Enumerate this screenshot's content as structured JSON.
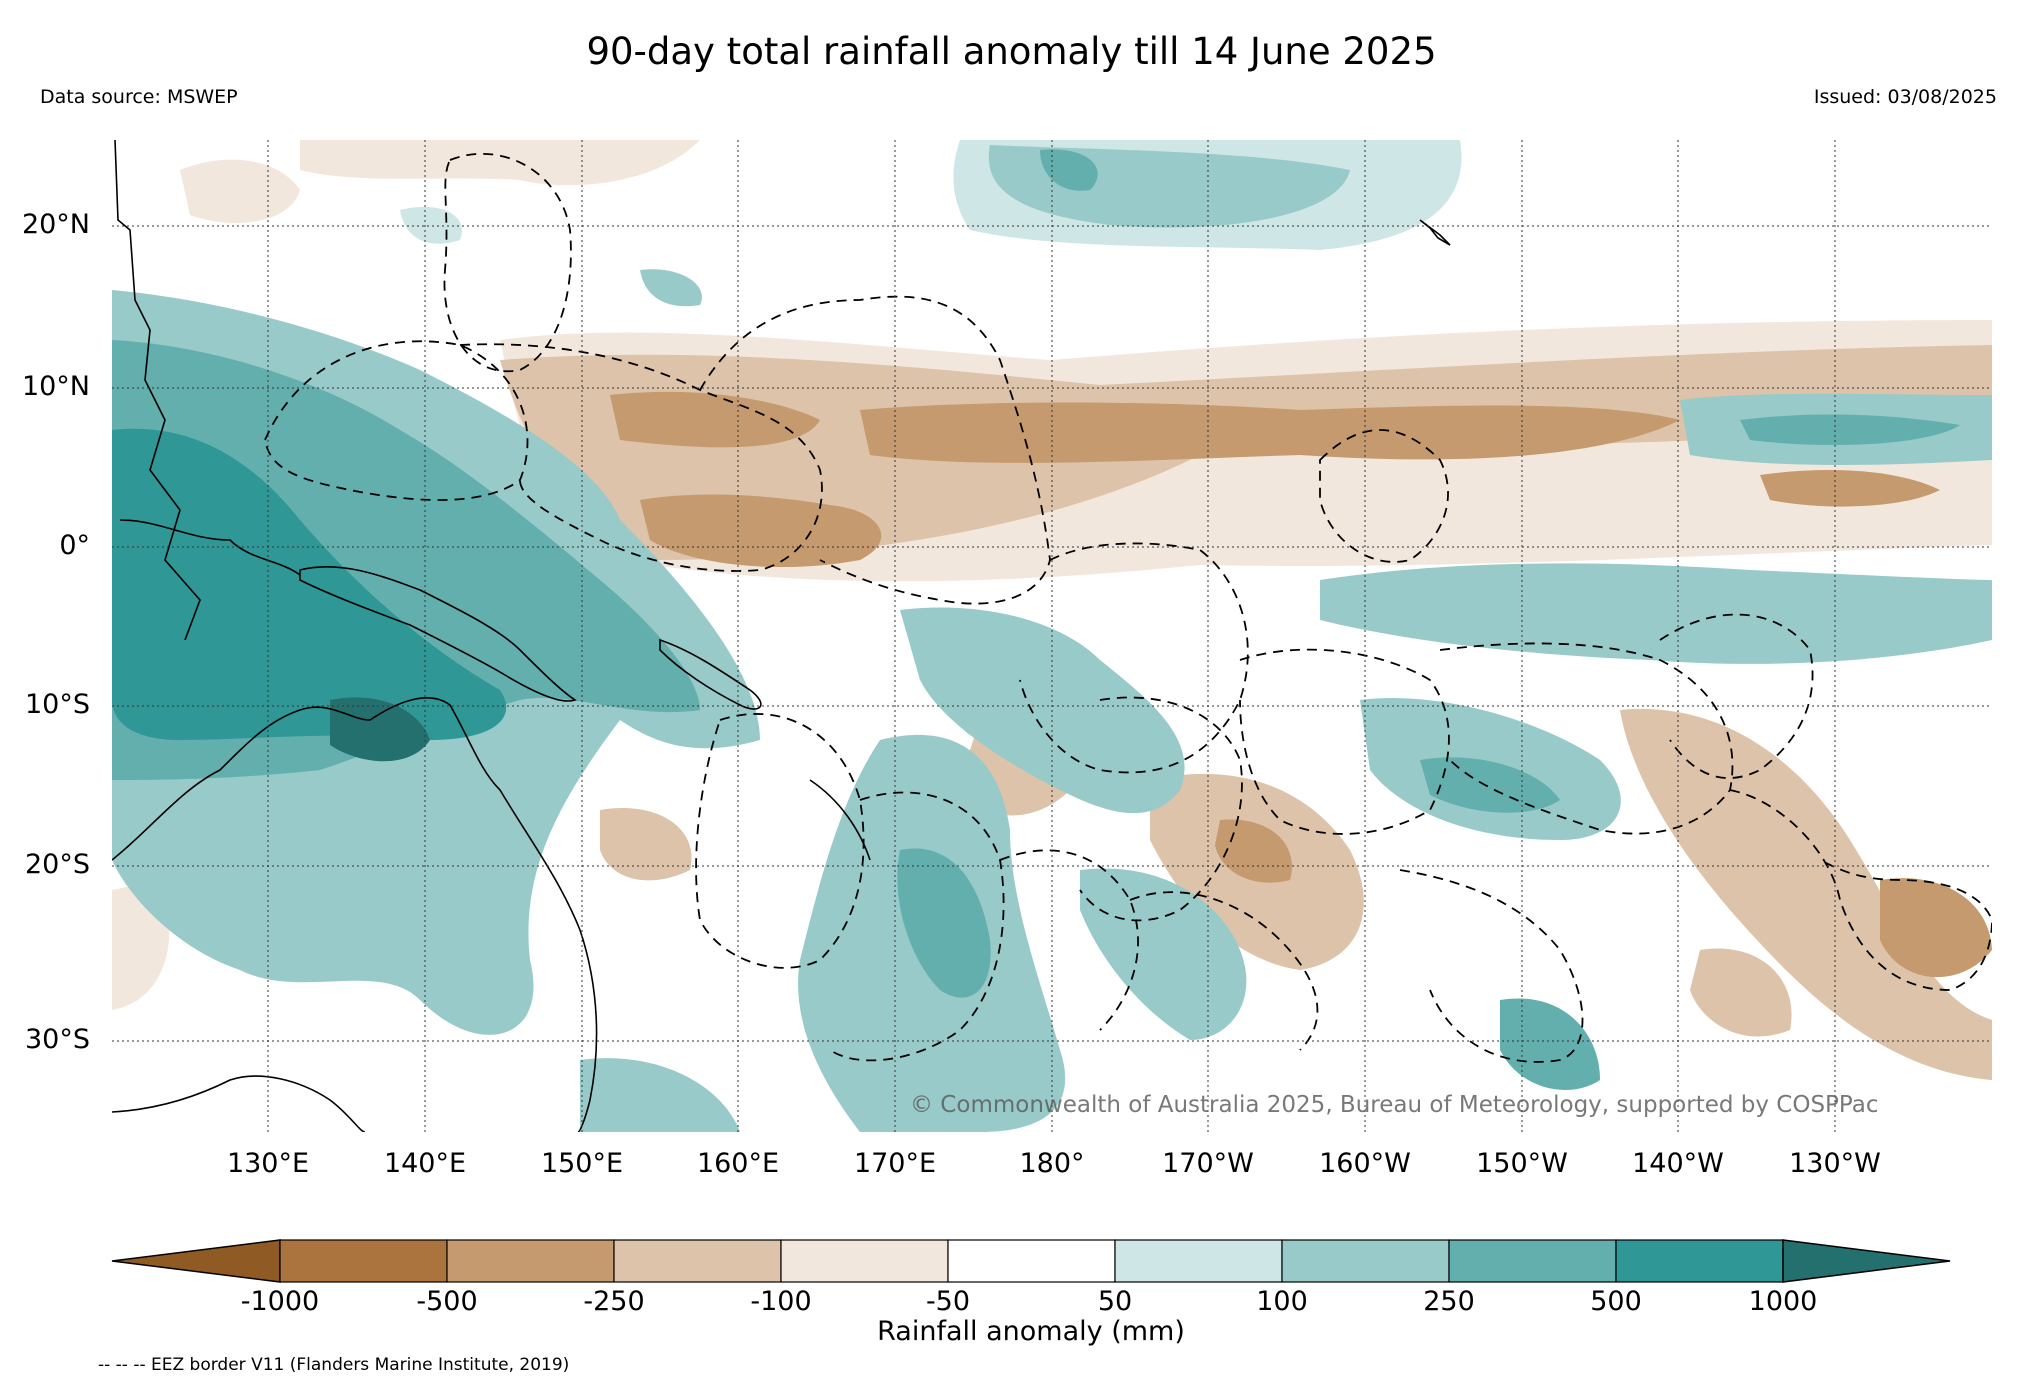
{
  "map": {
    "title": "90-day total rainfall anomaly till 14 June 2025",
    "data_source": "Data source: MSWEP",
    "issued": "Issued: 03/08/2025",
    "copyright": "© Commonwealth of Australia 2025, Bureau of Meteorology, supported by COSPPac",
    "lat_labels": [
      "20°N",
      "10°N",
      "0°",
      "10°S",
      "20°S",
      "30°S"
    ],
    "lon_labels": [
      "130°E",
      "140°E",
      "150°E",
      "160°E",
      "170°E",
      "180°",
      "170°W",
      "160°W",
      "150°W",
      "140°W",
      "130°W"
    ],
    "extent": {
      "lon": [
        120,
        240
      ],
      "lat": [
        -36,
        25
      ]
    },
    "note": "-- -- -- EEZ border V11 (Flanders Marine Institute, 2019)"
  },
  "colorbar": {
    "title": "Rainfall anomaly (mm)",
    "tick_labels": [
      "-1000",
      "-500",
      "-250",
      "-100",
      "-50",
      "50",
      "100",
      "250",
      "500",
      "1000"
    ],
    "colors": [
      "#8f5a24",
      "#ab743e",
      "#c49a6e",
      "#dcc3aa",
      "#f2e7dd",
      "#ffffff",
      "#cfe6e6",
      "#97cac8",
      "#63afae",
      "#2f9796",
      "#24706f"
    ]
  }
}
